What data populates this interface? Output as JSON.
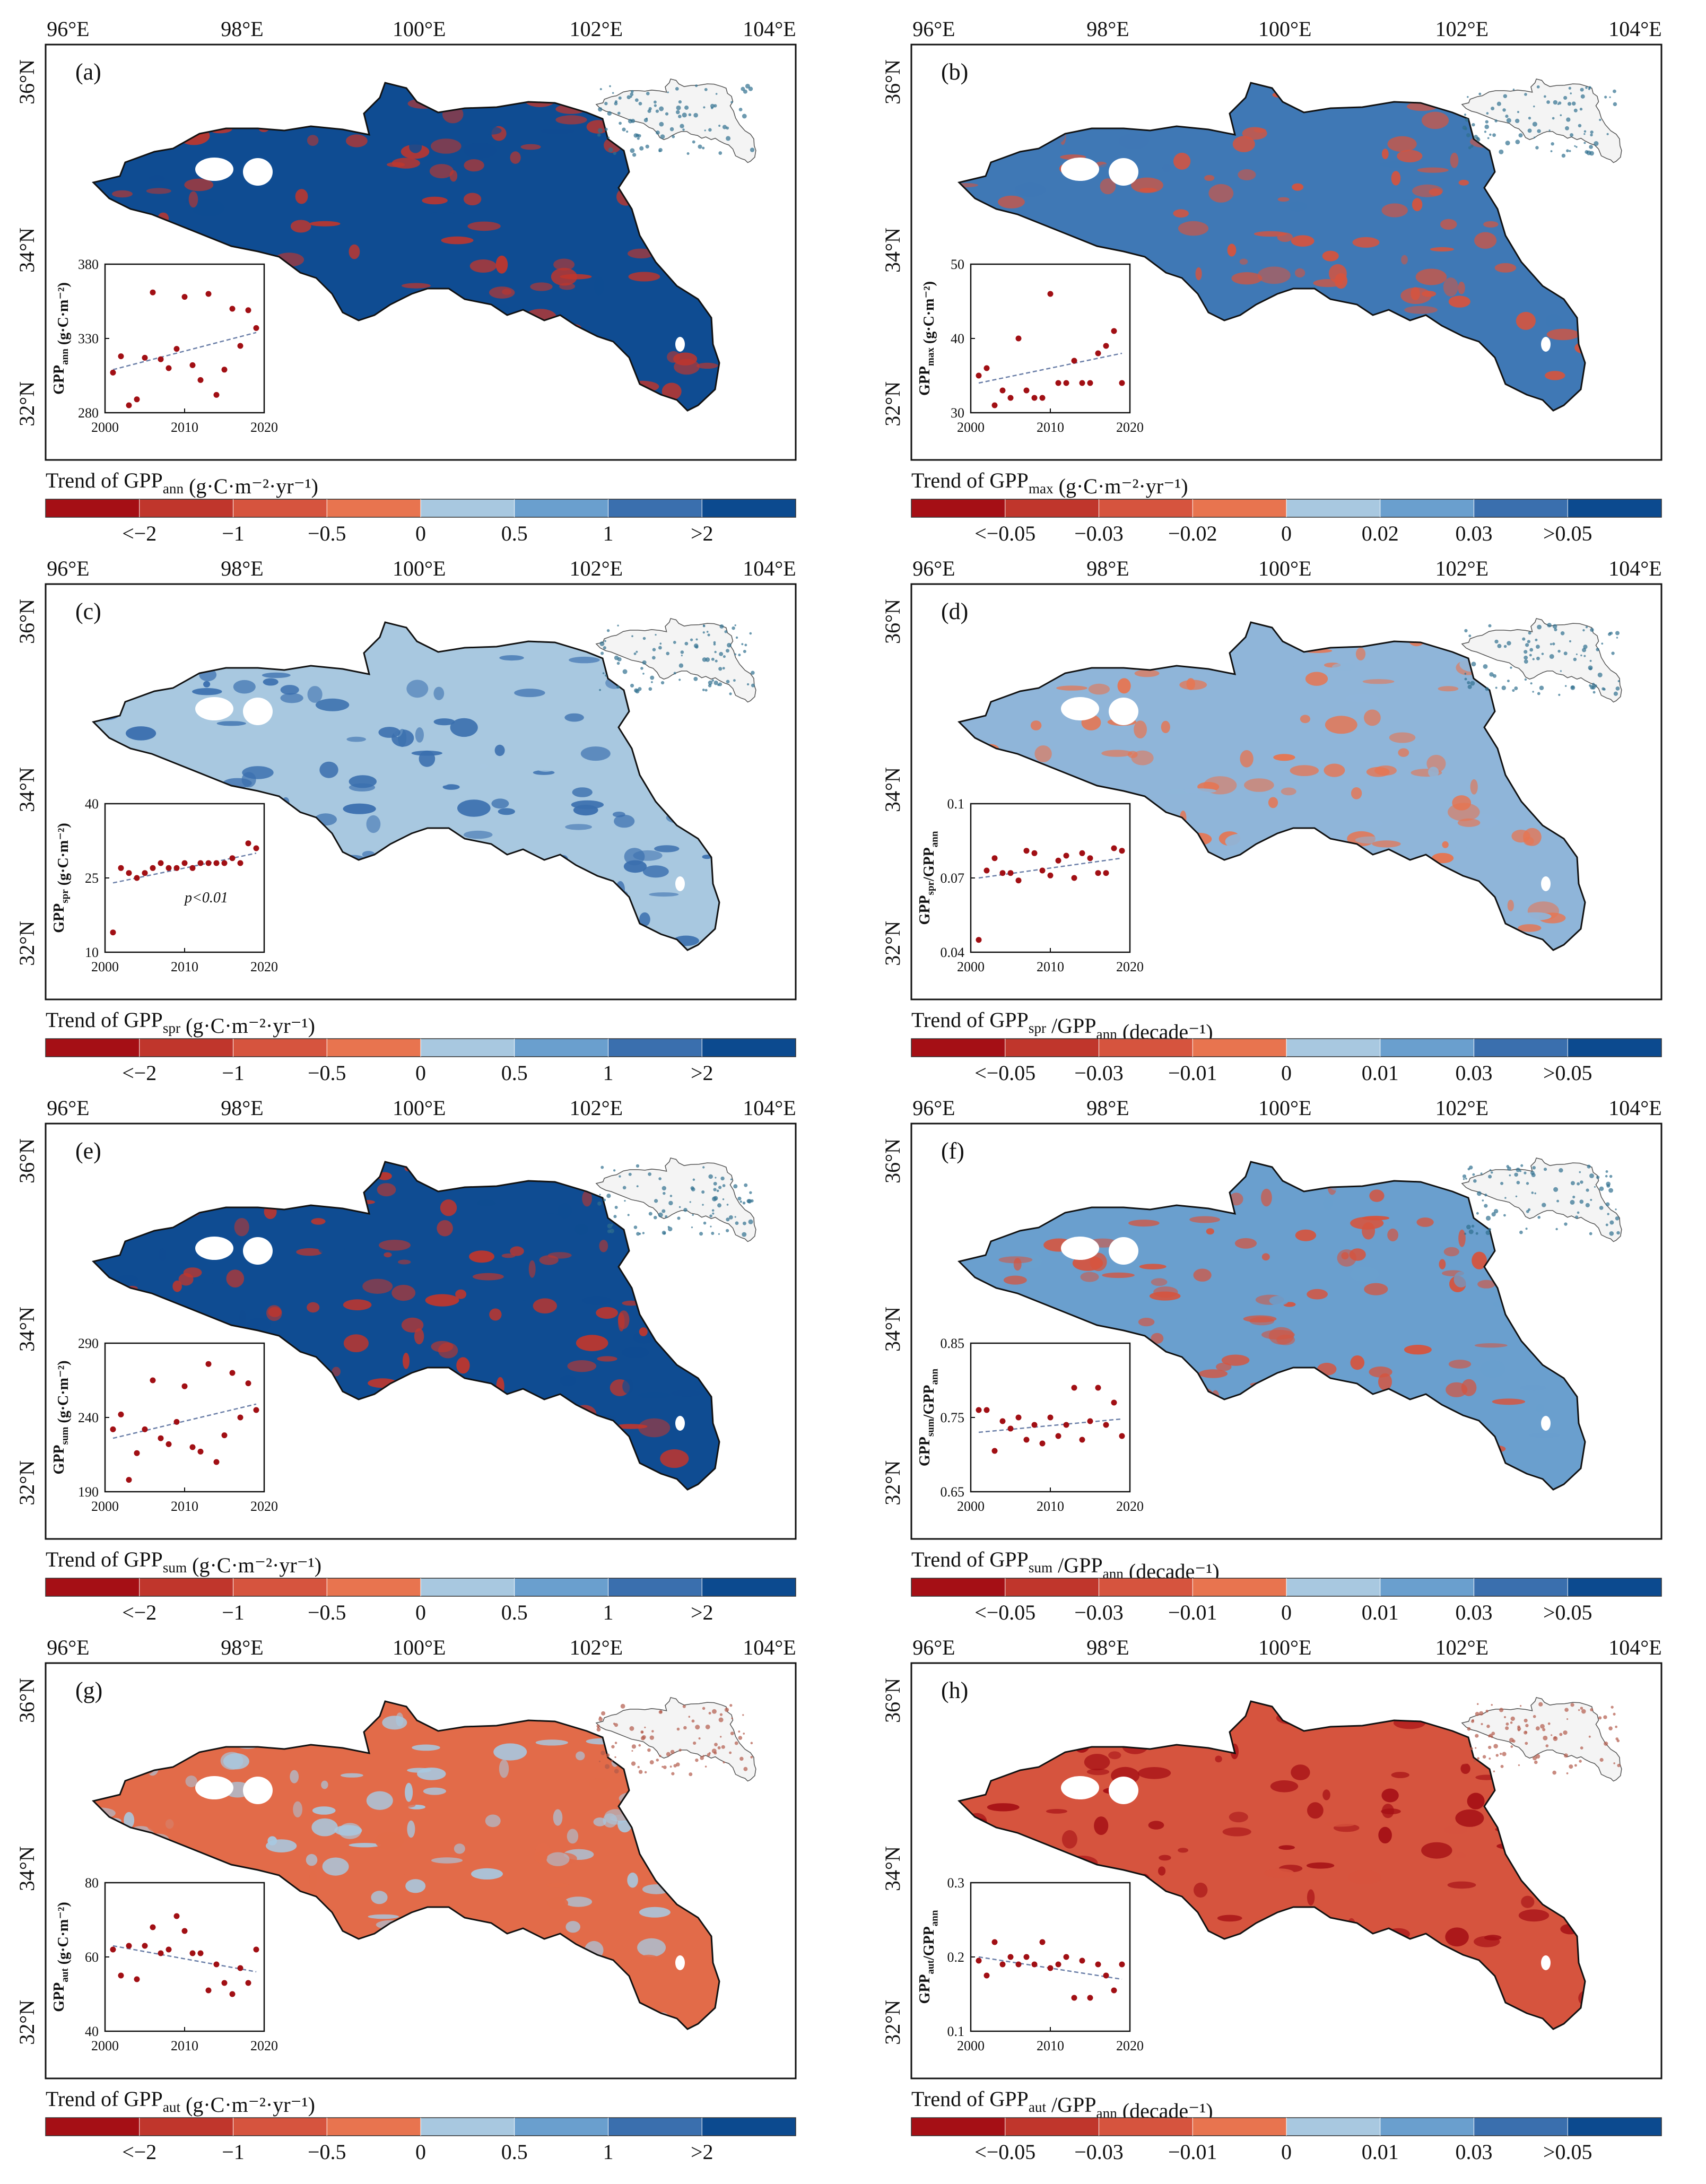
{
  "figure": {
    "lon_labels": [
      "96°E",
      "98°E",
      "100°E",
      "102°E",
      "104°E"
    ],
    "lat_labels": [
      "36°N",
      "34°N",
      "32°N"
    ],
    "scales": {
      "abs": {
        "labels": [
          "<−2",
          "−1",
          "−0.5",
          "0",
          "0.5",
          "1",
          ">2"
        ],
        "colors": [
          "#a50f15",
          "#c0362c",
          "#d6543e",
          "#e8744f",
          "#a8c8e0",
          "#6a9fce",
          "#3a6fae",
          "#0c4a8f"
        ]
      },
      "max": {
        "labels": [
          "<−0.05",
          "−0.03",
          "−0.02",
          "0",
          "0.02",
          "0.03",
          ">0.05"
        ],
        "colors": [
          "#a50f15",
          "#c0362c",
          "#d6543e",
          "#e8744f",
          "#a8c8e0",
          "#6a9fce",
          "#3a6fae",
          "#0c4a8f"
        ]
      },
      "ratio": {
        "labels": [
          "<−0.05",
          "−0.03",
          "−0.01",
          "0",
          "0.01",
          "0.03",
          ">0.05"
        ],
        "colors": [
          "#a50f15",
          "#c0362c",
          "#d6543e",
          "#e8744f",
          "#a8c8e0",
          "#6a9fce",
          "#3a6fae",
          "#0c4a8f"
        ]
      }
    }
  },
  "chart_data": [
    {
      "type": "scatter",
      "panel": "(a)",
      "scale": "abs",
      "dominant": "#0f4c92",
      "patches": "#c0362c",
      "inset_yaxis_label": "GPP_ann (g·C·m⁻²)",
      "legend_title": "Trend of GPP_ann (g·C·m⁻²·yr⁻¹)",
      "xlim": [
        2000,
        2020
      ],
      "ylim": [
        280,
        380
      ],
      "xticks": [
        2000,
        2010,
        2020
      ],
      "yticks": [
        280,
        330,
        380
      ],
      "x": [
        2001,
        2002,
        2003,
        2004,
        2005,
        2006,
        2007,
        2008,
        2009,
        2010,
        2011,
        2012,
        2013,
        2014,
        2015,
        2016,
        2017,
        2018,
        2019
      ],
      "y": [
        307,
        318,
        285,
        289,
        317,
        361,
        316,
        310,
        323,
        358,
        312,
        302,
        360,
        292,
        309,
        350,
        325,
        349,
        337
      ],
      "trend": [
        309,
        334
      ],
      "annotation": ""
    },
    {
      "type": "scatter",
      "panel": "(b)",
      "scale": "max",
      "dominant": "#3f78b5",
      "patches": "#d6543e",
      "inset_yaxis_label": "GPP_max (g·C·m⁻²)",
      "legend_title": "Trend of GPP_max (g·C·m⁻²·yr⁻¹)",
      "xlim": [
        2000,
        2020
      ],
      "ylim": [
        30,
        50
      ],
      "xticks": [
        2000,
        2010,
        2020
      ],
      "yticks": [
        30,
        40,
        50
      ],
      "x": [
        2001,
        2002,
        2003,
        2004,
        2005,
        2006,
        2007,
        2008,
        2009,
        2010,
        2011,
        2012,
        2013,
        2014,
        2015,
        2016,
        2017,
        2018,
        2019
      ],
      "y": [
        35,
        36,
        31,
        33,
        32,
        40,
        33,
        32,
        32,
        46,
        34,
        34,
        37,
        34,
        34,
        38,
        39,
        41,
        34
      ],
      "trend": [
        34,
        38
      ],
      "annotation": ""
    },
    {
      "type": "scatter",
      "panel": "(c)",
      "scale": "abs",
      "dominant": "#a8c8e0",
      "patches": "#3a6fae",
      "inset_yaxis_label": "GPP_spr (g·C·m⁻²)",
      "legend_title": "Trend of GPP_spr (g·C·m⁻²·yr⁻¹)",
      "xlim": [
        2000,
        2020
      ],
      "ylim": [
        10,
        40
      ],
      "xticks": [
        2000,
        2010,
        2020
      ],
      "yticks": [
        10,
        25,
        40
      ],
      "x": [
        2001,
        2002,
        2003,
        2004,
        2005,
        2006,
        2007,
        2008,
        2009,
        2010,
        2011,
        2012,
        2013,
        2014,
        2015,
        2016,
        2017,
        2018,
        2019
      ],
      "y": [
        14,
        27,
        26,
        25,
        26,
        27,
        28,
        27,
        27,
        28,
        27,
        28,
        28,
        28,
        28,
        29,
        28,
        32,
        31
      ],
      "trend": [
        24,
        30
      ],
      "annotation": "p<0.01"
    },
    {
      "type": "scatter",
      "panel": "(d)",
      "scale": "ratio",
      "dominant": "#8fb5d9",
      "patches": "#e8744f",
      "inset_yaxis_label": "GPP_spr/GPP_ann",
      "legend_title": "Trend of GPP_spr /GPP_ann (decade⁻¹)",
      "xlim": [
        2000,
        2020
      ],
      "ylim": [
        0.04,
        0.1
      ],
      "xticks": [
        2000,
        2010,
        2020
      ],
      "yticks": [
        0.04,
        0.07,
        0.1
      ],
      "x": [
        2001,
        2002,
        2003,
        2004,
        2005,
        2006,
        2007,
        2008,
        2009,
        2010,
        2011,
        2012,
        2013,
        2014,
        2015,
        2016,
        2017,
        2018,
        2019
      ],
      "y": [
        0.045,
        0.073,
        0.078,
        0.072,
        0.072,
        0.069,
        0.081,
        0.08,
        0.073,
        0.071,
        0.077,
        0.079,
        0.07,
        0.08,
        0.078,
        0.072,
        0.072,
        0.082,
        0.081
      ],
      "trend": [
        0.07,
        0.078
      ],
      "annotation": ""
    },
    {
      "type": "scatter",
      "panel": "(e)",
      "scale": "abs",
      "dominant": "#0f4c92",
      "patches": "#c0362c",
      "inset_yaxis_label": "GPP_sum (g·C·m⁻²)",
      "legend_title": "Trend of GPP_sum (g·C·m⁻²·yr⁻¹)",
      "xlim": [
        2000,
        2020
      ],
      "ylim": [
        190,
        290
      ],
      "xticks": [
        2000,
        2010,
        2020
      ],
      "yticks": [
        190,
        240,
        290
      ],
      "x": [
        2001,
        2002,
        2003,
        2004,
        2005,
        2006,
        2007,
        2008,
        2009,
        2010,
        2011,
        2012,
        2013,
        2014,
        2015,
        2016,
        2017,
        2018,
        2019
      ],
      "y": [
        232,
        242,
        198,
        216,
        232,
        265,
        226,
        222,
        237,
        261,
        220,
        217,
        276,
        210,
        228,
        270,
        240,
        263,
        245
      ],
      "trend": [
        226,
        249
      ],
      "annotation": ""
    },
    {
      "type": "scatter",
      "panel": "(f)",
      "scale": "ratio",
      "dominant": "#6a9fce",
      "patches": "#d6543e",
      "inset_yaxis_label": "GPP_sum/GPP_ann",
      "legend_title": "Trend of GPP_sum /GPP_ann (decade⁻¹)",
      "xlim": [
        2000,
        2020
      ],
      "ylim": [
        0.65,
        0.85
      ],
      "xticks": [
        2000,
        2010,
        2020
      ],
      "yticks": [
        0.65,
        0.75,
        0.85
      ],
      "x": [
        2001,
        2002,
        2003,
        2004,
        2005,
        2006,
        2007,
        2008,
        2009,
        2010,
        2011,
        2012,
        2013,
        2014,
        2015,
        2016,
        2017,
        2018,
        2019
      ],
      "y": [
        0.76,
        0.76,
        0.705,
        0.745,
        0.735,
        0.75,
        0.72,
        0.74,
        0.715,
        0.75,
        0.725,
        0.74,
        0.79,
        0.72,
        0.745,
        0.79,
        0.74,
        0.77,
        0.725
      ],
      "trend": [
        0.73,
        0.748
      ],
      "annotation": ""
    },
    {
      "type": "scatter",
      "panel": "(g)",
      "scale": "abs",
      "dominant": "#e26b49",
      "patches": "#a8c8e0",
      "inset_yaxis_label": "GPP_aut (g·C·m⁻²)",
      "legend_title": "Trend of GPP_aut (g·C·m⁻²·yr⁻¹)",
      "xlim": [
        2000,
        2020
      ],
      "ylim": [
        40,
        80
      ],
      "xticks": [
        2000,
        2010,
        2020
      ],
      "yticks": [
        40,
        60,
        80
      ],
      "x": [
        2001,
        2002,
        2003,
        2004,
        2005,
        2006,
        2007,
        2008,
        2009,
        2010,
        2011,
        2012,
        2013,
        2014,
        2015,
        2016,
        2017,
        2018,
        2019
      ],
      "y": [
        62,
        55,
        63,
        54,
        63,
        68,
        61,
        62,
        71,
        67,
        61,
        61,
        51,
        58,
        53,
        50,
        57,
        53,
        62
      ],
      "trend": [
        63,
        56
      ],
      "annotation": ""
    },
    {
      "type": "scatter",
      "panel": "(h)",
      "scale": "ratio",
      "dominant": "#d6543e",
      "patches": "#a50f15",
      "inset_yaxis_label": "GPP_aut/GPP_ann",
      "legend_title": "Trend of GPP_aut /GPP_ann (decade⁻¹)",
      "xlim": [
        2000,
        2020
      ],
      "ylim": [
        0.1,
        0.3
      ],
      "xticks": [
        2000,
        2010,
        2020
      ],
      "yticks": [
        0.1,
        0.2,
        0.3
      ],
      "x": [
        2001,
        2002,
        2003,
        2004,
        2005,
        2006,
        2007,
        2008,
        2009,
        2010,
        2011,
        2012,
        2013,
        2014,
        2015,
        2016,
        2017,
        2018,
        2019
      ],
      "y": [
        0.195,
        0.175,
        0.22,
        0.19,
        0.2,
        0.19,
        0.2,
        0.19,
        0.22,
        0.185,
        0.19,
        0.2,
        0.145,
        0.195,
        0.145,
        0.19,
        0.175,
        0.155,
        0.19
      ],
      "trend": [
        0.2,
        0.17
      ],
      "annotation": ""
    }
  ]
}
